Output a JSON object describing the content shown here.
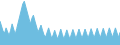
{
  "chart_data": {
    "type": "area",
    "values": [
      16.5,
      15.2,
      14.0,
      13.5,
      14.8,
      13.8,
      12.9,
      14.2,
      15.8,
      14.5,
      13.2,
      14.6,
      16.0,
      17.8,
      19.5,
      20.8,
      21.5,
      20.2,
      18.5,
      17.0,
      15.8,
      17.2,
      18.0,
      16.5,
      15.0,
      13.8,
      14.5,
      15.5,
      14.2,
      13.0,
      12.5,
      13.5,
      14.8,
      13.5,
      12.2,
      13.0,
      14.2,
      13.0,
      12.0,
      13.2,
      14.5,
      13.2,
      12.0,
      13.1,
      14.3,
      13.1,
      12.0,
      13.2,
      14.4,
      13.3,
      12.1,
      13.3,
      14.5,
      13.3,
      12.2,
      13.3,
      14.5,
      13.4,
      12.2,
      13.4,
      14.6,
      13.4,
      12.3,
      13.5,
      14.7,
      13.5,
      12.3,
      13.5,
      14.7,
      13.5,
      12.3,
      13.6,
      14.8,
      13.6,
      12.4,
      13.6,
      14.8,
      13.6,
      12.4,
      13.7
    ],
    "color": "#6dbde0",
    "ylim": [
      10.5,
      21.8
    ],
    "grid": false,
    "tick_labels": false
  }
}
